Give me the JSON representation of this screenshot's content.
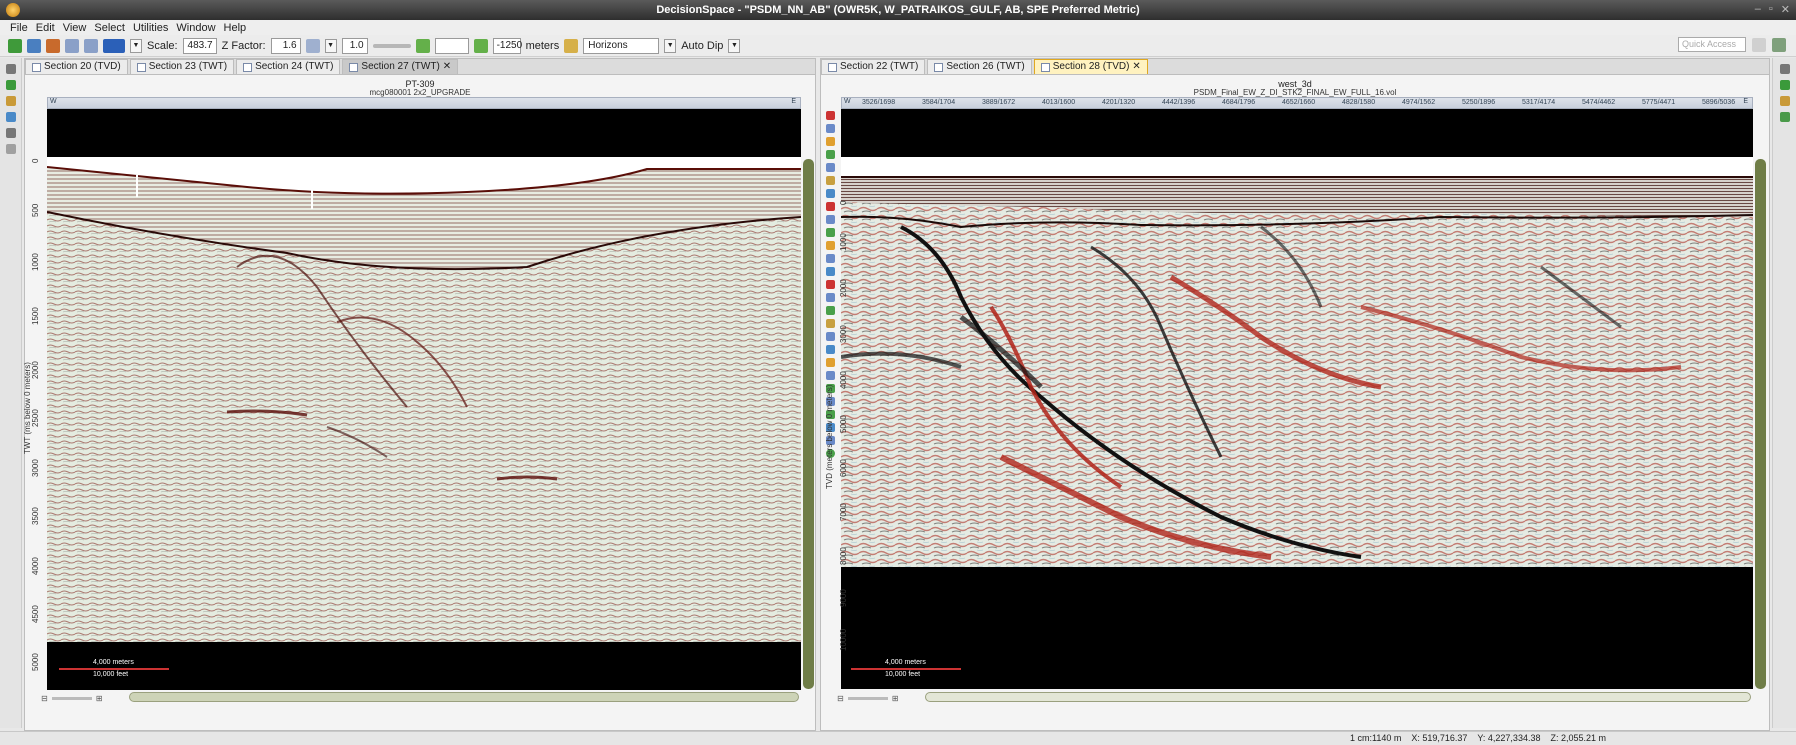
{
  "window": {
    "title": "DecisionSpace - \"PSDM_NN_AB\" (OWR5K, W_PATRAIKOS_GULF, AB, SPE Preferred Metric)"
  },
  "menu": [
    "File",
    "Edit",
    "View",
    "Select",
    "Utilities",
    "Window",
    "Help"
  ],
  "toolbar": {
    "scale_label": "Scale:",
    "scale_value": "483.7",
    "zfactor_label": "Z Factor:",
    "zfactor_value": "1.6",
    "vert_value": "1.0",
    "offset_value": "-1250",
    "units_label": "meters",
    "horizons_label": "Horizons",
    "autodip_label": "Auto Dip",
    "quick_access_placeholder": "Quick Access"
  },
  "left_panel": {
    "tabs": [
      {
        "label": "Section 20 (TVD)",
        "active": false
      },
      {
        "label": "Section 23 (TWT)",
        "active": false
      },
      {
        "label": "Section 24 (TWT)",
        "active": false
      },
      {
        "label": "Section 27 (TWT)",
        "active": true
      }
    ],
    "section_title": "PT-309",
    "section_subtitle": "mcg080001 2x2_UPGRADE",
    "y_axis_label": "TWT (ms below 0 meters)",
    "y_ticks": [
      "0",
      "500",
      "1000",
      "1500",
      "2000",
      "2500",
      "3000",
      "3500",
      "4000",
      "4500",
      "5000"
    ],
    "scale_meters": "4,000 meters",
    "scale_feet": "10,000 feet",
    "compass_left": "W",
    "compass_right": "E"
  },
  "right_panel": {
    "tabs": [
      {
        "label": "Section 22 (TWT)",
        "active": false
      },
      {
        "label": "Section 26 (TWT)",
        "active": false
      },
      {
        "label": "Section 28 (TVD)",
        "active": true
      }
    ],
    "section_title": "west_3d",
    "section_subtitle": "PSDM_Final_EW_Z_DI_STK2_FINAL_EW_FULL_16.vol",
    "y_axis_label": "TVD (meters below 0 meters)",
    "y_ticks": [
      "0",
      "1000",
      "2000",
      "3000",
      "4000",
      "5000",
      "6000",
      "7000",
      "8000",
      "9000",
      "10000"
    ],
    "axis_ticks": [
      "3526/1698",
      "3584/1704",
      "3889/1672",
      "4013/1600",
      "4201/1320",
      "4442/1396",
      "4684/1796",
      "4652/1660",
      "4828/1580",
      "4974/1562",
      "5250/1896",
      "5317/4174",
      "5474/4462",
      "5775/4471",
      "5896/5036"
    ],
    "scale_meters": "4,000 meters",
    "scale_feet": "10,000 feet",
    "compass_left": "W",
    "compass_right": "E"
  },
  "status": {
    "scale": "1 cm:1140 m",
    "x": "X: 519,716.37",
    "y": "Y: 4,227,334.38",
    "z": "Z: 2,055.21 m"
  },
  "colors": {
    "seismic_red": "#8a1a12",
    "seismic_black": "#101010",
    "seismic_background": "#e9eee3",
    "active_tab": "#fff2c0",
    "scrollbar": "#6f7d47"
  }
}
